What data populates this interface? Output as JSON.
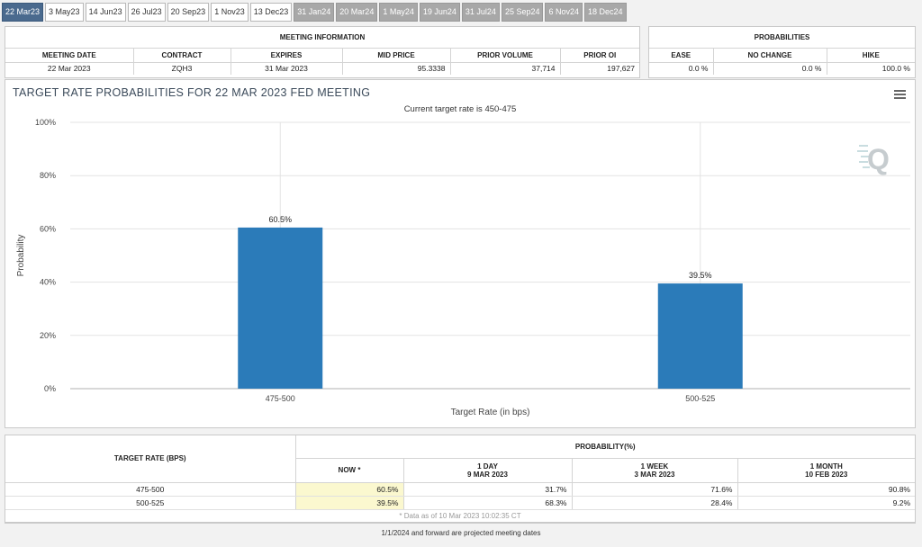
{
  "tabs": [
    {
      "label": "22 Mar23",
      "state": "active"
    },
    {
      "label": "3 May23",
      "state": "normal"
    },
    {
      "label": "14 Jun23",
      "state": "normal"
    },
    {
      "label": "26 Jul23",
      "state": "normal"
    },
    {
      "label": "20 Sep23",
      "state": "normal"
    },
    {
      "label": "1 Nov23",
      "state": "normal"
    },
    {
      "label": "13 Dec23",
      "state": "normal"
    },
    {
      "label": "31 Jan24",
      "state": "future"
    },
    {
      "label": "20 Mar24",
      "state": "future"
    },
    {
      "label": "1 May24",
      "state": "future"
    },
    {
      "label": "19 Jun24",
      "state": "future"
    },
    {
      "label": "31 Jul24",
      "state": "future"
    },
    {
      "label": "25 Sep24",
      "state": "future"
    },
    {
      "label": "6 Nov24",
      "state": "future"
    },
    {
      "label": "18 Dec24",
      "state": "future"
    }
  ],
  "meeting_info": {
    "title": "MEETING INFORMATION",
    "headers": [
      "MEETING DATE",
      "CONTRACT",
      "EXPIRES",
      "MID PRICE",
      "PRIOR VOLUME",
      "PRIOR OI"
    ],
    "row": {
      "meeting_date": "22 Mar 2023",
      "contract": "ZQH3",
      "expires": "31 Mar 2023",
      "mid_price": "95.3338",
      "prior_volume": "37,714",
      "prior_oi": "197,627"
    }
  },
  "probabilities": {
    "title": "PROBABILITIES",
    "headers": [
      "EASE",
      "NO CHANGE",
      "HIKE"
    ],
    "row": {
      "ease": "0.0 %",
      "no_change": "0.0 %",
      "hike": "100.0 %"
    }
  },
  "chart": {
    "title": "TARGET RATE PROBABILITIES FOR 22 MAR 2023 FED MEETING",
    "subtitle": "Current target rate is 450-475"
  },
  "chart_data": {
    "type": "bar",
    "categories": [
      "475-500",
      "500-525"
    ],
    "values": [
      60.5,
      39.5
    ],
    "value_labels": [
      "60.5%",
      "39.5%"
    ],
    "title": "TARGET RATE PROBABILITIES FOR 22 MAR 2023 FED MEETING",
    "subtitle": "Current target rate is 450-475",
    "xlabel": "Target Rate (in bps)",
    "ylabel": "Probability",
    "ylim": [
      0,
      100
    ],
    "yticks": [
      "0%",
      "20%",
      "40%",
      "60%",
      "80%",
      "100%"
    ],
    "ytick_values": [
      0,
      20,
      40,
      60,
      80,
      100
    ],
    "bar_color": "#2b7bb9",
    "grid": true
  },
  "prob_table": {
    "col_target": "TARGET RATE (BPS)",
    "col_group": "PROBABILITY(%)",
    "cols": [
      {
        "l1": "NOW *",
        "l2": ""
      },
      {
        "l1": "1 DAY",
        "l2": "9 MAR 2023"
      },
      {
        "l1": "1 WEEK",
        "l2": "3 MAR 2023"
      },
      {
        "l1": "1 MONTH",
        "l2": "10 FEB 2023"
      }
    ],
    "rows": [
      {
        "rate": "475-500",
        "now": "60.5%",
        "day": "31.7%",
        "week": "71.6%",
        "month": "90.8%"
      },
      {
        "rate": "500-525",
        "now": "39.5%",
        "day": "68.3%",
        "week": "28.4%",
        "month": "9.2%"
      }
    ],
    "note": "* Data as of 10 Mar 2023 10:02:35 CT"
  },
  "footer": "1/1/2024 and forward are projected meeting dates",
  "colors": {
    "active_tab": "#4a6a8e",
    "future_tab": "#a8a8a8",
    "now_cell": "#fbf8cf",
    "bar": "#2b7bb9"
  }
}
